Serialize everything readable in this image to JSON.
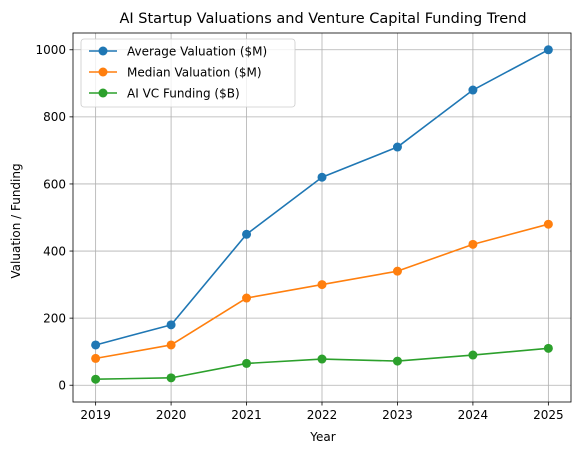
{
  "chart_data": {
    "type": "line",
    "title": "AI Startup Valuations and Venture Capital Funding Trend",
    "xlabel": "Year",
    "ylabel": "Valuation / Funding",
    "x": [
      2019,
      2020,
      2021,
      2022,
      2023,
      2024,
      2025
    ],
    "x_ticks": [
      "2019",
      "2020",
      "2021",
      "2022",
      "2023",
      "2024",
      "2025"
    ],
    "y_ticks": [
      "0",
      "200",
      "400",
      "600",
      "800",
      "1000"
    ],
    "xlim": [
      2018.7,
      2025.3
    ],
    "ylim": [
      -50,
      1050
    ],
    "grid": true,
    "legend_position": "upper-left",
    "series": [
      {
        "name": "Average Valuation ($M)",
        "color": "#1f77b4",
        "values": [
          120,
          180,
          450,
          620,
          710,
          880,
          1000
        ]
      },
      {
        "name": "Median Valuation ($M)",
        "color": "#ff7f0e",
        "values": [
          80,
          120,
          260,
          300,
          340,
          420,
          480
        ]
      },
      {
        "name": "AI VC Funding ($B)",
        "color": "#2ca02c",
        "values": [
          18,
          22,
          65,
          78,
          72,
          90,
          110
        ]
      }
    ]
  }
}
